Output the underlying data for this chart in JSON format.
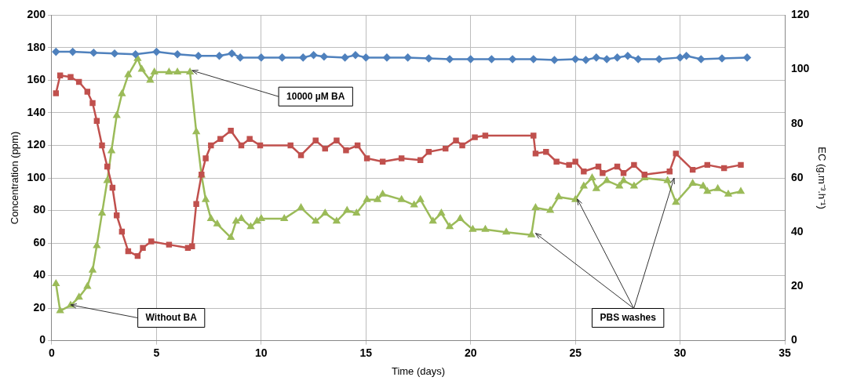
{
  "chart_data": {
    "type": "line",
    "xlabel": "Time (days)",
    "ylabel": "Concentration (ppm)",
    "y2label": "EC (g.m⁻³.h⁻¹)",
    "xlim": [
      0,
      35
    ],
    "xticks": [
      0,
      5,
      10,
      15,
      20,
      25,
      30,
      35
    ],
    "ylim": [
      0,
      200
    ],
    "yticks": [
      0,
      20,
      40,
      60,
      80,
      100,
      120,
      140,
      160,
      180,
      200
    ],
    "y2lim": [
      0,
      120
    ],
    "y2ticks": [
      0,
      20,
      40,
      60,
      80,
      100,
      120
    ],
    "grid": true,
    "legend": false,
    "series": [
      {
        "color": "#4f81bd",
        "marker": "diamond",
        "x": [
          0.2,
          1,
          2,
          3,
          4,
          5,
          6,
          7,
          8,
          8.6,
          9,
          10,
          11,
          12,
          12.5,
          13,
          14,
          14.5,
          15,
          16,
          17,
          18,
          19,
          20,
          21,
          22,
          23,
          24,
          25,
          25.5,
          26,
          26.5,
          27,
          27.5,
          28,
          29,
          30,
          30.3,
          31,
          32,
          33.2
        ],
        "values": [
          177.5,
          177.5,
          177,
          176.5,
          176,
          177.5,
          176,
          175,
          175,
          176.5,
          174,
          174,
          174,
          174,
          175.5,
          174.5,
          174,
          175.5,
          174,
          174,
          174,
          173.5,
          173,
          173,
          173,
          173,
          173,
          172.5,
          173,
          172.5,
          174,
          173,
          174,
          175,
          173,
          173,
          174,
          175,
          173,
          173.5,
          174
        ]
      },
      {
        "color": "#c0504d",
        "marker": "square",
        "x": [
          0.2,
          0.4,
          0.9,
          1.3,
          1.7,
          1.95,
          2.15,
          2.4,
          2.65,
          2.9,
          3.1,
          3.35,
          3.65,
          4.1,
          4.35,
          4.75,
          5.6,
          6.5,
          6.7,
          6.9,
          7.15,
          7.35,
          7.6,
          8.05,
          8.55,
          9.05,
          9.45,
          9.95,
          11.4,
          11.9,
          12.6,
          13.05,
          13.6,
          14.05,
          14.6,
          15.05,
          15.8,
          16.7,
          17.6,
          18,
          18.8,
          19.3,
          19.6,
          20.2,
          20.7,
          23,
          23.1,
          23.6,
          24.1,
          24.7,
          25,
          25.4,
          26.1,
          26.3,
          27,
          27.3,
          27.8,
          28.3,
          29.5,
          29.8,
          30.6,
          31.3,
          32.1,
          32.9
        ],
        "values": [
          152,
          163,
          162,
          159,
          153,
          146,
          135,
          120,
          107,
          94,
          77,
          67,
          55,
          52,
          57,
          61,
          59,
          57,
          58,
          84,
          102,
          112,
          120,
          124,
          129,
          120,
          124,
          120,
          120,
          114,
          123,
          118,
          123,
          117,
          120,
          112,
          110,
          112,
          111,
          116,
          118,
          123,
          120,
          125,
          126,
          126,
          115,
          116,
          110,
          108,
          110,
          104,
          107,
          103,
          107,
          103,
          108,
          102,
          104,
          115,
          105,
          108,
          106,
          108
        ]
      },
      {
        "color": "#9bbb59",
        "marker": "triangle",
        "axis": "y2",
        "x": [
          0.2,
          0.4,
          0.9,
          1.3,
          1.7,
          1.95,
          2.15,
          2.4,
          2.65,
          2.85,
          3.1,
          3.35,
          3.65,
          4.1,
          4.3,
          4.7,
          4.9,
          5.6,
          6,
          6.6,
          6.9,
          7.15,
          7.35,
          7.6,
          7.9,
          8.55,
          8.8,
          9.05,
          9.5,
          9.8,
          10,
          11.1,
          11.9,
          12.6,
          13.05,
          13.6,
          14.1,
          14.55,
          15.05,
          15.55,
          15.8,
          16.7,
          17.3,
          17.6,
          18.2,
          18.6,
          19,
          19.5,
          20.1,
          20.7,
          21.7,
          22.9,
          23.1,
          23.8,
          24.2,
          25,
          25.4,
          25.8,
          26,
          26.5,
          27.1,
          27.3,
          27.8,
          28.3,
          29.4,
          29.8,
          30.6,
          31.1,
          31.3,
          31.8,
          32.3,
          32.9
        ],
        "values": [
          21,
          11,
          13,
          16,
          20,
          26,
          35,
          47,
          59,
          70,
          83,
          91,
          98,
          104,
          100,
          96,
          99,
          99,
          99,
          99,
          77,
          61,
          52,
          45,
          43,
          38,
          44,
          45,
          42,
          44,
          45,
          45,
          49,
          44,
          47,
          44,
          48,
          47,
          52,
          52,
          54,
          52,
          50,
          52,
          44,
          47,
          42,
          45,
          41,
          41,
          40,
          39,
          49,
          48,
          53,
          52,
          57,
          60,
          56,
          59,
          57,
          59,
          57,
          60,
          59,
          51,
          58,
          57,
          55,
          56,
          54,
          55
        ]
      }
    ],
    "annotations": [
      {
        "text": "10000 µM BA",
        "x": 6.7,
        "y": 166
      },
      {
        "text": "Without BA",
        "x": 0.9,
        "y": 22
      },
      {
        "text": "PBS washes",
        "x": 23.1,
        "y": 66
      }
    ]
  }
}
